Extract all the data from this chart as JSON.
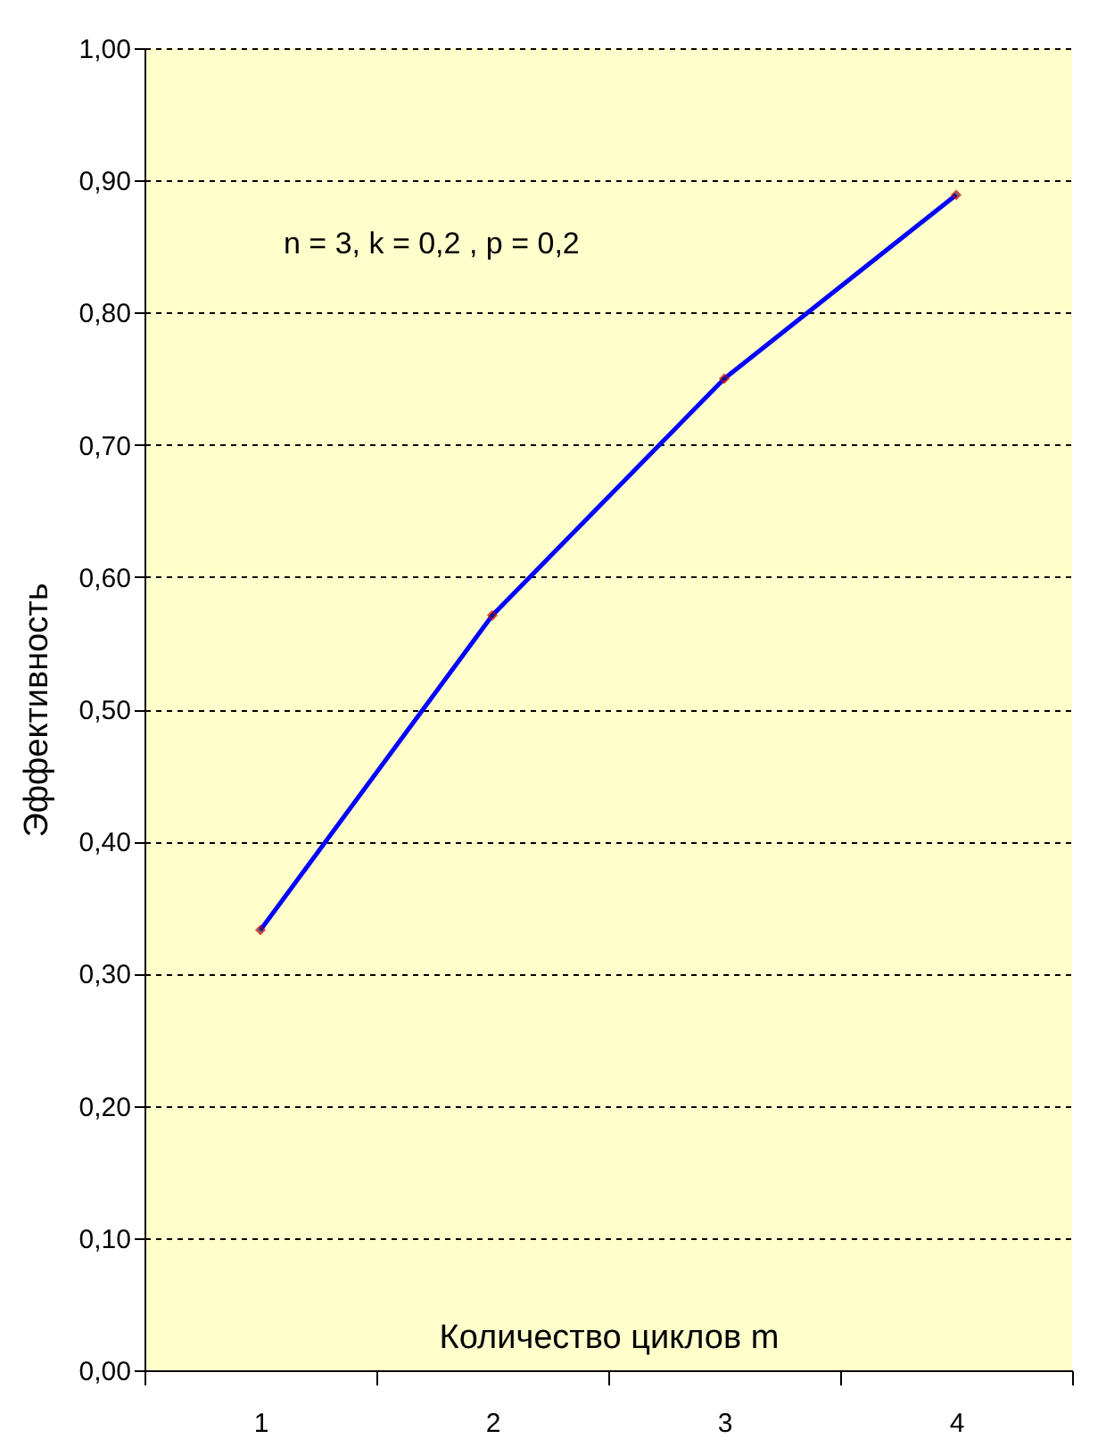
{
  "chart_data": {
    "type": "line",
    "xlabel": "Количество циклов m",
    "ylabel": "Эффективность",
    "annotations": [
      "n = 3, k = 0,2 , p = 0,2"
    ],
    "categories": [
      "1",
      "2",
      "3",
      "4"
    ],
    "series": [
      {
        "color": "#0000ff",
        "values": [
          0.333,
          0.571,
          0.75,
          0.889
        ]
      }
    ],
    "ylim": [
      0,
      1
    ],
    "yticks": [
      {
        "value": 0,
        "label": "0,00"
      },
      {
        "value": 0.1,
        "label": "0,10"
      },
      {
        "value": 0.2,
        "label": "0,20"
      },
      {
        "value": 0.3,
        "label": "0,30"
      },
      {
        "value": 0.4,
        "label": "0,40"
      },
      {
        "value": 0.5,
        "label": "0,50"
      },
      {
        "value": 0.6,
        "label": "0,60"
      },
      {
        "value": 0.7,
        "label": "0,70"
      },
      {
        "value": 0.8,
        "label": "0,80"
      },
      {
        "value": 0.9,
        "label": "0,90"
      },
      {
        "value": 1,
        "label": "1,00"
      }
    ],
    "grid": "y",
    "marker": "diamond",
    "line_style": "solid"
  }
}
